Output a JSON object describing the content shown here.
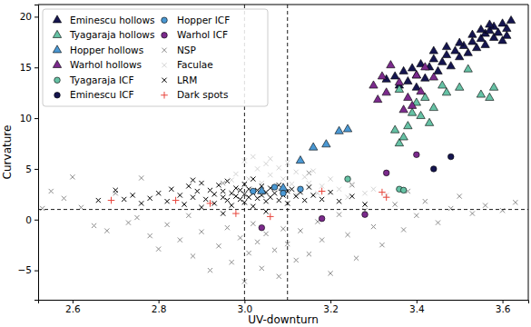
{
  "chart_data": {
    "type": "scatter",
    "x_label": "UV-downturn",
    "y_label": "Curvature",
    "xlim": [
      2.52,
      3.66
    ],
    "ylim": [
      -7.9,
      21.2
    ],
    "xticks": [
      2.6,
      2.8,
      {
        "value": 3,
        "label": "3.0"
      },
      3.2,
      3.4,
      3.6
    ],
    "yticks": [
      {
        "value": -5,
        "label": "−5"
      },
      0,
      5,
      10,
      15,
      20
    ],
    "vlines": [
      3.0,
      3.1
    ],
    "hlines": [
      1
    ],
    "legend": "upper left",
    "series": [
      {
        "name": "Eminescu hollows",
        "color": "#15154f",
        "marker": "triangle",
        "x": [
          3.33,
          3.35,
          3.36,
          3.37,
          3.38,
          3.39,
          3.4,
          3.41,
          3.42,
          3.43,
          3.44,
          3.45,
          3.46,
          3.47,
          3.48,
          3.49,
          3.5,
          3.51,
          3.52,
          3.53,
          3.54,
          3.55,
          3.56,
          3.56,
          3.57,
          3.58,
          3.58,
          3.59,
          3.6,
          3.61,
          3.62,
          3.61,
          3.57,
          3.55,
          3.53,
          3.5,
          3.47,
          3.44,
          3.4,
          3.6
        ],
        "values": [
          13.8,
          14.1,
          13.2,
          14.6,
          13.6,
          14.9,
          14.2,
          15.3,
          13.9,
          15.0,
          15.8,
          14.6,
          15.5,
          16.2,
          15.1,
          16.6,
          16.0,
          17.1,
          16.4,
          17.5,
          16.9,
          17.8,
          18.3,
          17.2,
          18.6,
          17.9,
          19.0,
          18.4,
          19.3,
          18.1,
          19.6,
          18.8,
          19.2,
          18.7,
          18.2,
          17.4,
          17.0,
          16.6,
          13.0,
          17.6
        ]
      },
      {
        "name": "Tyagaraja hollows",
        "color": "#66c2a5",
        "marker": "triangle",
        "x": [
          3.35,
          3.36,
          3.37,
          3.38,
          3.39,
          3.4,
          3.41,
          3.42,
          3.43,
          3.44,
          3.46,
          3.47,
          3.5,
          3.52,
          3.55,
          3.57,
          3.58,
          3.36
        ],
        "values": [
          8.8,
          7.5,
          8.1,
          9.2,
          10.5,
          11.5,
          10.2,
          12.0,
          9.5,
          11.0,
          13.2,
          12.5,
          13.0,
          14.8,
          12.3,
          12.0,
          13.0,
          12.8
        ]
      },
      {
        "name": "Hopper hollows",
        "color": "#4a98d3",
        "marker": "triangle",
        "x": [
          3.13,
          3.16,
          3.19,
          3.22,
          3.24,
          3.04,
          3.09
        ],
        "values": [
          5.8,
          7.1,
          7.4,
          8.7,
          8.9,
          2.8,
          3.1
        ]
      },
      {
        "name": "Warhol hollows",
        "color": "#7b2a8c",
        "marker": "triangle",
        "x": [
          3.3,
          3.31,
          3.33,
          3.34,
          3.36,
          3.37,
          3.38,
          3.4,
          3.42,
          3.44,
          3.32,
          3.39,
          3.41
        ],
        "values": [
          13.2,
          11.8,
          12.5,
          15.2,
          13.5,
          10.8,
          12.0,
          14.2,
          15.0,
          14.0,
          14.1,
          11.2,
          12.6
        ]
      },
      {
        "name": "Tyagaraja ICF",
        "color": "#66c2a5",
        "marker": "circle",
        "x": [
          3.36,
          3.37,
          3.24
        ],
        "values": [
          3.0,
          2.9,
          4.0
        ]
      },
      {
        "name": "Eminescu ICF",
        "color": "#15154f",
        "marker": "circle",
        "x": [
          3.44,
          3.48
        ],
        "values": [
          5.0,
          6.2
        ]
      },
      {
        "name": "Hopper ICF",
        "color": "#4a98d3",
        "marker": "circle",
        "x": [
          3.02,
          3.07,
          3.09,
          3.13
        ],
        "values": [
          2.8,
          3.2,
          2.6,
          3.0
        ]
      },
      {
        "name": "Warhol ICF",
        "color": "#7b2a8c",
        "marker": "circle",
        "x": [
          3.28,
          3.33,
          3.4,
          3.04,
          3.18
        ],
        "values": [
          0.5,
          4.6,
          6.4,
          -0.8,
          0.1
        ]
      },
      {
        "name": "NSP",
        "color": "#8c8c8c",
        "marker": "x",
        "x": [
          2.53,
          2.55,
          2.58,
          2.6,
          2.62,
          2.65,
          2.68,
          2.7,
          2.73,
          2.75,
          2.78,
          2.8,
          2.82,
          2.85,
          2.87,
          2.88,
          2.9,
          2.92,
          2.94,
          2.96,
          2.97,
          2.99,
          3.0,
          3.01,
          3.02,
          3.03,
          3.04,
          3.05,
          3.07,
          3.08,
          3.09,
          3.1,
          3.12,
          3.13,
          3.15,
          3.17,
          3.18,
          3.2,
          3.22,
          3.24,
          3.26,
          3.28,
          3.3,
          3.32,
          3.35,
          3.37,
          3.4,
          3.42,
          3.45,
          3.48,
          3.5,
          3.53,
          3.56,
          3.6,
          3.63,
          3.25,
          3.38,
          2.95,
          3.15,
          2.76
        ],
        "values": [
          1.1,
          2.8,
          2.1,
          4.2,
          1.2,
          -0.6,
          -1.1,
          2.6,
          -0.3,
          0.2,
          -1.6,
          -2.9,
          -0.5,
          -2.0,
          0.4,
          -3.6,
          -1.2,
          -5.0,
          -2.6,
          -0.8,
          -4.2,
          -1.8,
          -6.1,
          -3.3,
          -0.4,
          -2.2,
          -4.8,
          -1.4,
          -3.0,
          -5.6,
          -0.9,
          -2.4,
          -4.0,
          -1.1,
          -3.4,
          -0.2,
          -2.0,
          -5.3,
          0.5,
          -1.5,
          -3.8,
          0.9,
          -0.7,
          -2.5,
          1.5,
          -1.0,
          0.4,
          1.8,
          -0.3,
          1.1,
          2.3,
          0.6,
          1.4,
          0.9,
          1.7,
          3.4,
          2.8,
          3.6,
          4.6,
          4.1
        ]
      },
      {
        "name": "Faculae",
        "color": "#d3d3d3",
        "marker": "x",
        "x": [
          2.98,
          3.0,
          3.01,
          3.02,
          3.03,
          3.04,
          3.05,
          3.06,
          3.06,
          3.07,
          3.08,
          3.09,
          3.1,
          3.11,
          3.12,
          3.13,
          3.14,
          3.15,
          3.16,
          3.18,
          3.2,
          3.22,
          3.25,
          3.28,
          3.3,
          3.05,
          3.0,
          2.97,
          3.12,
          3.08,
          3.17,
          3.24,
          3.33
        ],
        "values": [
          4.5,
          5.8,
          4.0,
          6.2,
          5.0,
          3.6,
          5.5,
          4.4,
          6.0,
          3.2,
          5.1,
          4.0,
          5.6,
          3.5,
          4.7,
          3.0,
          4.2,
          3.6,
          4.8,
          3.3,
          4.0,
          3.0,
          3.5,
          2.6,
          3.0,
          2.6,
          3.4,
          3.9,
          2.5,
          3.0,
          2.6,
          2.2,
          2.4
        ]
      },
      {
        "name": "LRM",
        "color": "#000000",
        "marker": "x",
        "x": [
          2.78,
          2.8,
          2.82,
          2.83,
          2.85,
          2.86,
          2.87,
          2.88,
          2.89,
          2.9,
          2.9,
          2.91,
          2.92,
          2.93,
          2.93,
          2.94,
          2.95,
          2.95,
          2.96,
          2.96,
          2.97,
          2.97,
          2.98,
          2.98,
          2.99,
          2.99,
          3.0,
          3.0,
          3.0,
          3.01,
          3.01,
          3.02,
          3.02,
          3.03,
          3.03,
          3.04,
          3.04,
          3.05,
          3.05,
          3.06,
          3.06,
          3.07,
          3.08,
          3.08,
          3.09,
          3.1,
          3.1,
          3.11,
          3.12,
          3.13,
          3.14,
          3.15,
          3.16,
          3.18,
          3.2,
          3.22,
          2.74,
          2.76,
          2.72,
          2.7,
          2.66,
          3.25,
          3.28,
          2.95,
          3.05,
          2.88,
          3.02
        ],
        "values": [
          2.1,
          2.6,
          1.8,
          3.0,
          2.4,
          1.5,
          3.3,
          2.2,
          2.8,
          1.2,
          3.6,
          2.0,
          2.9,
          2.5,
          1.6,
          3.4,
          2.2,
          2.8,
          1.9,
          3.8,
          2.6,
          1.4,
          3.1,
          2.3,
          2.0,
          2.9,
          2.5,
          3.5,
          1.7,
          2.2,
          3.0,
          2.6,
          1.3,
          2.9,
          2.1,
          3.3,
          2.4,
          1.8,
          2.7,
          3.1,
          2.2,
          2.6,
          1.9,
          3.4,
          2.4,
          2.8,
          1.6,
          3.0,
          2.3,
          2.7,
          1.9,
          3.2,
          2.4,
          2.0,
          2.7,
          1.8,
          2.4,
          1.6,
          2.0,
          2.9,
          1.9,
          2.3,
          1.5,
          0.6,
          0.8,
          3.9,
          4.0
        ]
      },
      {
        "name": "Dark spots",
        "color": "#e8453c",
        "marker": "plus",
        "x": [
          2.69,
          2.84,
          2.92,
          2.98,
          3.06,
          3.18,
          3.32,
          3.33
        ],
        "values": [
          1.9,
          1.9,
          1.6,
          0.6,
          0.3,
          2.8,
          2.7,
          2.2
        ]
      }
    ]
  }
}
